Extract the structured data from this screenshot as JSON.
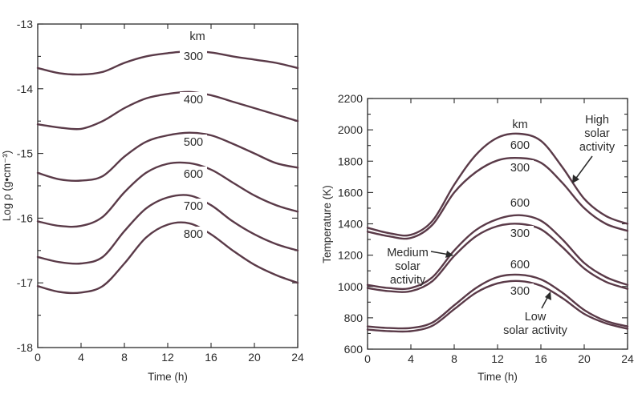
{
  "chart_data": [
    {
      "type": "line",
      "xlabel": "Time (h)",
      "ylabel": "Log ρ (g•cm⁻³)",
      "xlim": [
        0,
        24
      ],
      "ylim": [
        -18,
        -13
      ],
      "xticks": [
        "0",
        "4",
        "8",
        "12",
        "16",
        "20",
        "24"
      ],
      "yticks": [
        "-13",
        "-14",
        "-15",
        "-16",
        "-17",
        "-18"
      ],
      "unit_label": "km",
      "series": [
        {
          "name": "300",
          "x": [
            0,
            2,
            4,
            6,
            8,
            10,
            12,
            14,
            16,
            18,
            20,
            22,
            24
          ],
          "y": [
            -13.68,
            -13.76,
            -13.78,
            -13.74,
            -13.6,
            -13.5,
            -13.45,
            -13.42,
            -13.44,
            -13.5,
            -13.55,
            -13.6,
            -13.68
          ]
        },
        {
          "name": "400",
          "x": [
            0,
            2,
            4,
            6,
            8,
            10,
            12,
            14,
            16,
            18,
            20,
            22,
            24
          ],
          "y": [
            -14.55,
            -14.6,
            -14.62,
            -14.5,
            -14.3,
            -14.15,
            -14.08,
            -14.05,
            -14.1,
            -14.2,
            -14.3,
            -14.4,
            -14.5
          ]
        },
        {
          "name": "500",
          "x": [
            0,
            2,
            4,
            6,
            8,
            10,
            12,
            14,
            16,
            18,
            20,
            22,
            24
          ],
          "y": [
            -15.3,
            -15.4,
            -15.42,
            -15.35,
            -15.05,
            -14.82,
            -14.72,
            -14.68,
            -14.72,
            -14.85,
            -15.0,
            -15.15,
            -15.22
          ]
        },
        {
          "name": "600",
          "x": [
            0,
            2,
            4,
            6,
            8,
            10,
            12,
            14,
            16,
            18,
            20,
            22,
            24
          ],
          "y": [
            -16.05,
            -16.12,
            -16.12,
            -15.98,
            -15.6,
            -15.3,
            -15.16,
            -15.15,
            -15.25,
            -15.45,
            -15.65,
            -15.8,
            -15.9
          ]
        },
        {
          "name": "700",
          "x": [
            0,
            2,
            4,
            6,
            8,
            10,
            12,
            14,
            16,
            18,
            20,
            22,
            24
          ],
          "y": [
            -16.6,
            -16.68,
            -16.7,
            -16.6,
            -16.2,
            -15.85,
            -15.68,
            -15.65,
            -15.8,
            -16.05,
            -16.25,
            -16.4,
            -16.5
          ]
        },
        {
          "name": "800",
          "x": [
            0,
            2,
            4,
            6,
            8,
            10,
            12,
            14,
            16,
            18,
            20,
            22,
            24
          ],
          "y": [
            -17.05,
            -17.14,
            -17.15,
            -17.05,
            -16.7,
            -16.3,
            -16.1,
            -16.08,
            -16.25,
            -16.5,
            -16.72,
            -16.88,
            -17.0
          ]
        }
      ]
    },
    {
      "type": "line",
      "xlabel": "Time (h)",
      "ylabel": "Temperature (K)",
      "xlim": [
        0,
        24
      ],
      "ylim": [
        600,
        2200
      ],
      "xticks": [
        "0",
        "4",
        "8",
        "12",
        "16",
        "20",
        "24"
      ],
      "yticks": [
        "2200",
        "2000",
        "1800",
        "1600",
        "1400",
        "1200",
        "1000",
        "800",
        "600"
      ],
      "unit_label": "km",
      "annotations": [
        {
          "lines": [
            "High",
            "solar",
            "activity"
          ]
        },
        {
          "lines": [
            "Medium",
            "solar",
            "activity"
          ]
        },
        {
          "lines": [
            "Low",
            "solar activity"
          ]
        }
      ],
      "series": [
        {
          "name": "600",
          "group": "High solar activity",
          "x": [
            0,
            2,
            4,
            6,
            8,
            10,
            12,
            14,
            16,
            18,
            20,
            22,
            24
          ],
          "y": [
            1375,
            1340,
            1330,
            1420,
            1650,
            1840,
            1950,
            1975,
            1930,
            1760,
            1560,
            1450,
            1400
          ]
        },
        {
          "name": "300",
          "group": "High solar activity",
          "x": [
            0,
            2,
            4,
            6,
            8,
            10,
            12,
            14,
            16,
            18,
            20,
            22,
            24
          ],
          "y": [
            1350,
            1320,
            1310,
            1395,
            1600,
            1730,
            1805,
            1820,
            1790,
            1660,
            1500,
            1400,
            1355
          ]
        },
        {
          "name": "600",
          "group": "Medium solar activity",
          "x": [
            0,
            2,
            4,
            6,
            8,
            10,
            12,
            14,
            16,
            18,
            20,
            22,
            24
          ],
          "y": [
            1010,
            990,
            990,
            1060,
            1230,
            1360,
            1430,
            1455,
            1420,
            1300,
            1150,
            1060,
            1010
          ]
        },
        {
          "name": "300",
          "group": "Medium solar activity",
          "x": [
            0,
            2,
            4,
            6,
            8,
            10,
            12,
            14,
            16,
            18,
            20,
            22,
            24
          ],
          "y": [
            990,
            970,
            970,
            1035,
            1195,
            1320,
            1385,
            1400,
            1365,
            1250,
            1115,
            1030,
            985
          ]
        },
        {
          "name": "600",
          "group": "Low solar activity",
          "x": [
            0,
            2,
            4,
            6,
            8,
            10,
            12,
            14,
            16,
            18,
            20,
            22,
            24
          ],
          "y": [
            745,
            735,
            735,
            770,
            880,
            990,
            1060,
            1075,
            1045,
            960,
            850,
            780,
            745
          ]
        },
        {
          "name": "300",
          "group": "Low solar activity",
          "x": [
            0,
            2,
            4,
            6,
            8,
            10,
            12,
            14,
            16,
            18,
            20,
            22,
            24
          ],
          "y": [
            725,
            715,
            715,
            750,
            855,
            960,
            1020,
            1035,
            1005,
            925,
            825,
            765,
            730
          ]
        }
      ]
    }
  ]
}
